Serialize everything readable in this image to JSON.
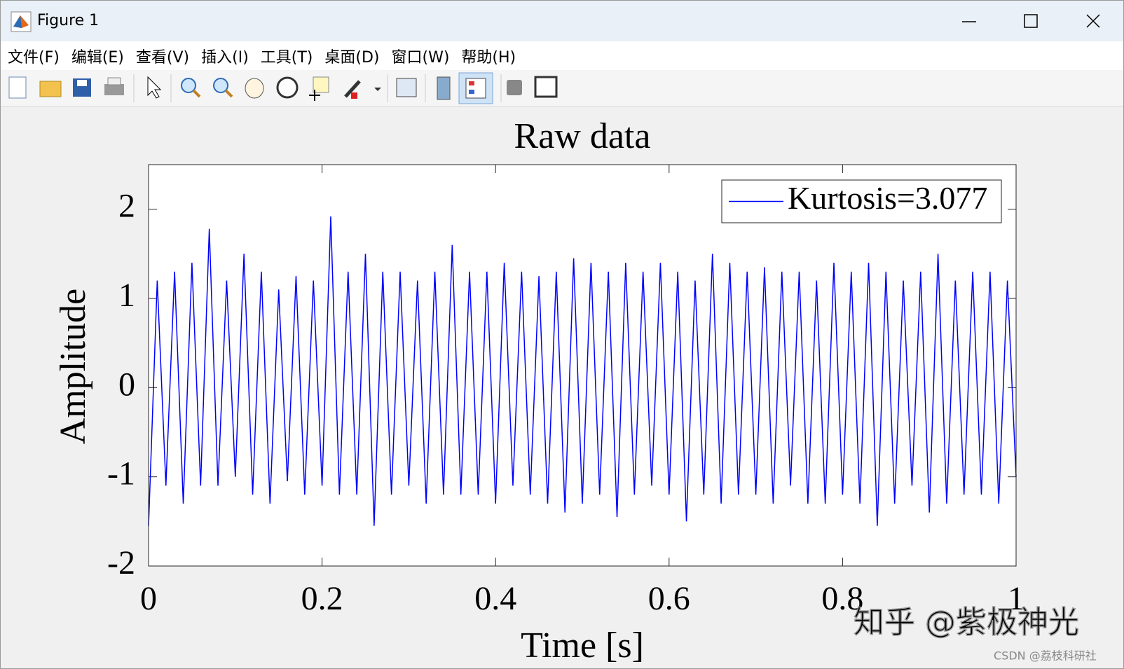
{
  "window": {
    "title": "Figure 1"
  },
  "menu": [
    "文件(F)",
    "编辑(E)",
    "查看(V)",
    "插入(I)",
    "工具(T)",
    "桌面(D)",
    "窗口(W)",
    "帮助(H)"
  ],
  "chart_data": {
    "type": "line",
    "title": "Raw data",
    "xlabel": "Time [s]",
    "ylabel": "Amplitude",
    "x": [
      0,
      0.01,
      0.02,
      0.03,
      0.04,
      0.05,
      0.06,
      0.07,
      0.08,
      0.09,
      0.1,
      0.11,
      0.12,
      0.13,
      0.14,
      0.15,
      0.16,
      0.17,
      0.18,
      0.19,
      0.2,
      0.21,
      0.22,
      0.23,
      0.24,
      0.25,
      0.26,
      0.27,
      0.28,
      0.29,
      0.3,
      0.31,
      0.32,
      0.33,
      0.34,
      0.35,
      0.36,
      0.37,
      0.38,
      0.39,
      0.4,
      0.41,
      0.42,
      0.43,
      0.44,
      0.45,
      0.46,
      0.47,
      0.48,
      0.49,
      0.5,
      0.51,
      0.52,
      0.53,
      0.54,
      0.55,
      0.56,
      0.57,
      0.58,
      0.59,
      0.6,
      0.61,
      0.62,
      0.63,
      0.64,
      0.65,
      0.66,
      0.67,
      0.68,
      0.69,
      0.7,
      0.71,
      0.72,
      0.73,
      0.74,
      0.75,
      0.76,
      0.77,
      0.78,
      0.79,
      0.8,
      0.81,
      0.82,
      0.83,
      0.84,
      0.85,
      0.86,
      0.87,
      0.88,
      0.89,
      0.9,
      0.91,
      0.92,
      0.93,
      0.94,
      0.95,
      0.96,
      0.97,
      0.98,
      0.99,
      1
    ],
    "series": [
      {
        "name": "Kurtosis=3.077",
        "color": "#0000ff",
        "values": [
          -1.55,
          1.2,
          -1.1,
          1.3,
          -1.3,
          1.4,
          -1.1,
          1.78,
          -1.1,
          1.2,
          -1.0,
          1.5,
          -1.2,
          1.3,
          -1.3,
          1.1,
          -1.05,
          1.25,
          -1.2,
          1.2,
          -1.1,
          1.92,
          -1.2,
          1.3,
          -1.2,
          1.5,
          -1.55,
          1.3,
          -1.2,
          1.3,
          -1.1,
          1.2,
          -1.3,
          1.3,
          -1.2,
          1.6,
          -1.2,
          1.3,
          -1.2,
          1.3,
          -1.3,
          1.4,
          -1.1,
          1.3,
          -1.2,
          1.25,
          -1.3,
          1.3,
          -1.4,
          1.45,
          -1.3,
          1.4,
          -1.2,
          1.3,
          -1.45,
          1.4,
          -1.2,
          1.3,
          -1.1,
          1.4,
          -1.2,
          1.3,
          -1.5,
          1.2,
          -1.2,
          1.5,
          -1.3,
          1.4,
          -1.2,
          1.3,
          -1.2,
          1.35,
          -1.3,
          1.3,
          -1.1,
          1.3,
          -1.3,
          1.2,
          -1.3,
          1.4,
          -1.2,
          1.3,
          -1.3,
          1.4,
          -1.55,
          1.3,
          -1.3,
          1.2,
          -1.1,
          1.3,
          -1.4,
          1.5,
          -1.3,
          1.2,
          -1.2,
          1.3,
          -1.2,
          1.3,
          -1.3,
          1.2,
          -1.0
        ]
      }
    ],
    "xlim": [
      0,
      1
    ],
    "ylim": [
      -2,
      2.5
    ],
    "xticks": [
      0,
      0.2,
      0.4,
      0.6,
      0.8,
      1
    ],
    "yticks": [
      -2,
      -1,
      0,
      1,
      2
    ],
    "grid": false,
    "legend": "upper-right"
  },
  "watermarks": [
    "知乎 @紫极神光",
    "CSDN @荔枝科研社"
  ]
}
